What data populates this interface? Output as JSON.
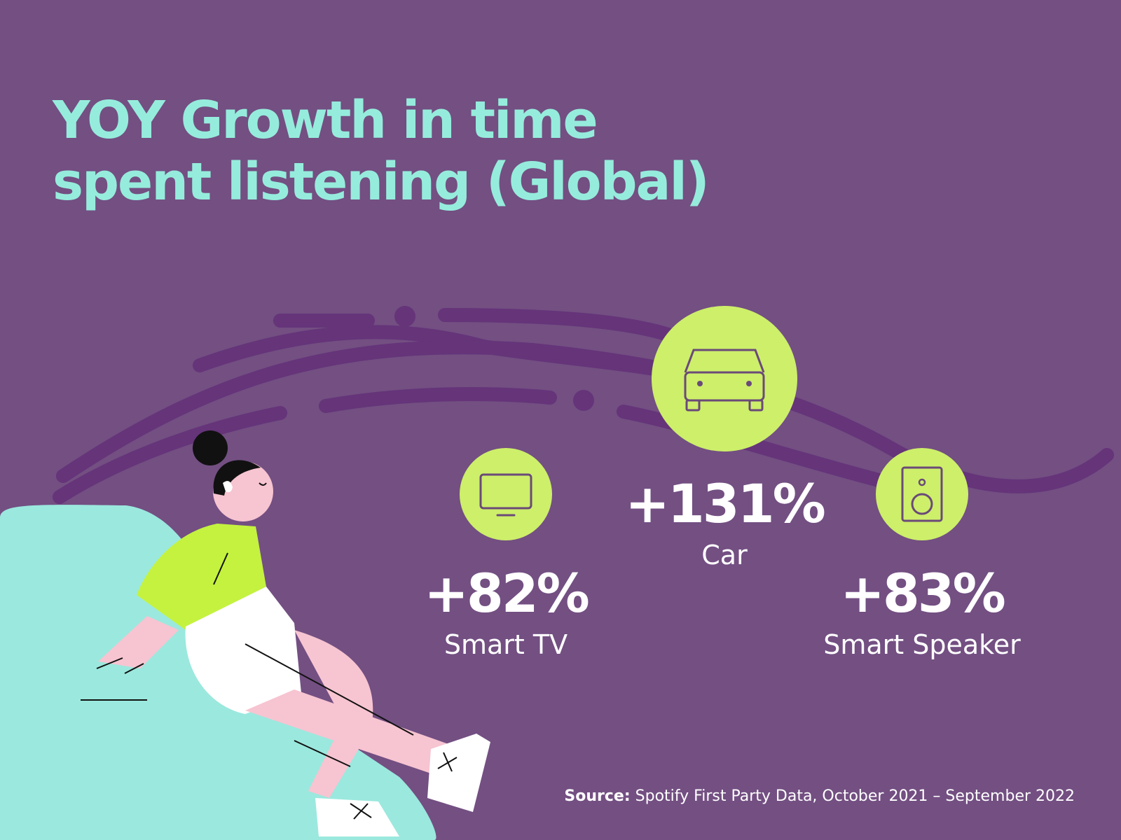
{
  "title": {
    "line1": "YOY Growth in time",
    "line2": "spent listening (Global)"
  },
  "colors": {
    "background": "#734f82",
    "title": "#96ecdc",
    "accent": "#cdef6a",
    "wave": "#653479",
    "text": "#ffffff"
  },
  "stats": [
    {
      "id": "smart-tv",
      "value": "+82%",
      "label": "Smart TV",
      "icon": "tv-icon"
    },
    {
      "id": "car",
      "value": "+131%",
      "label": "Car",
      "icon": "car-icon"
    },
    {
      "id": "smart-speaker",
      "value": "+83%",
      "label": "Smart Speaker",
      "icon": "speaker-icon"
    }
  ],
  "source": {
    "prefix": "Source:",
    "text": "Spotify First Party Data, October 2021 – September 2022"
  },
  "chart_data": {
    "type": "table",
    "title": "YOY Growth in time spent listening (Global)",
    "categories": [
      "Smart TV",
      "Car",
      "Smart Speaker"
    ],
    "values": [
      82,
      131,
      83
    ],
    "unit": "%"
  }
}
